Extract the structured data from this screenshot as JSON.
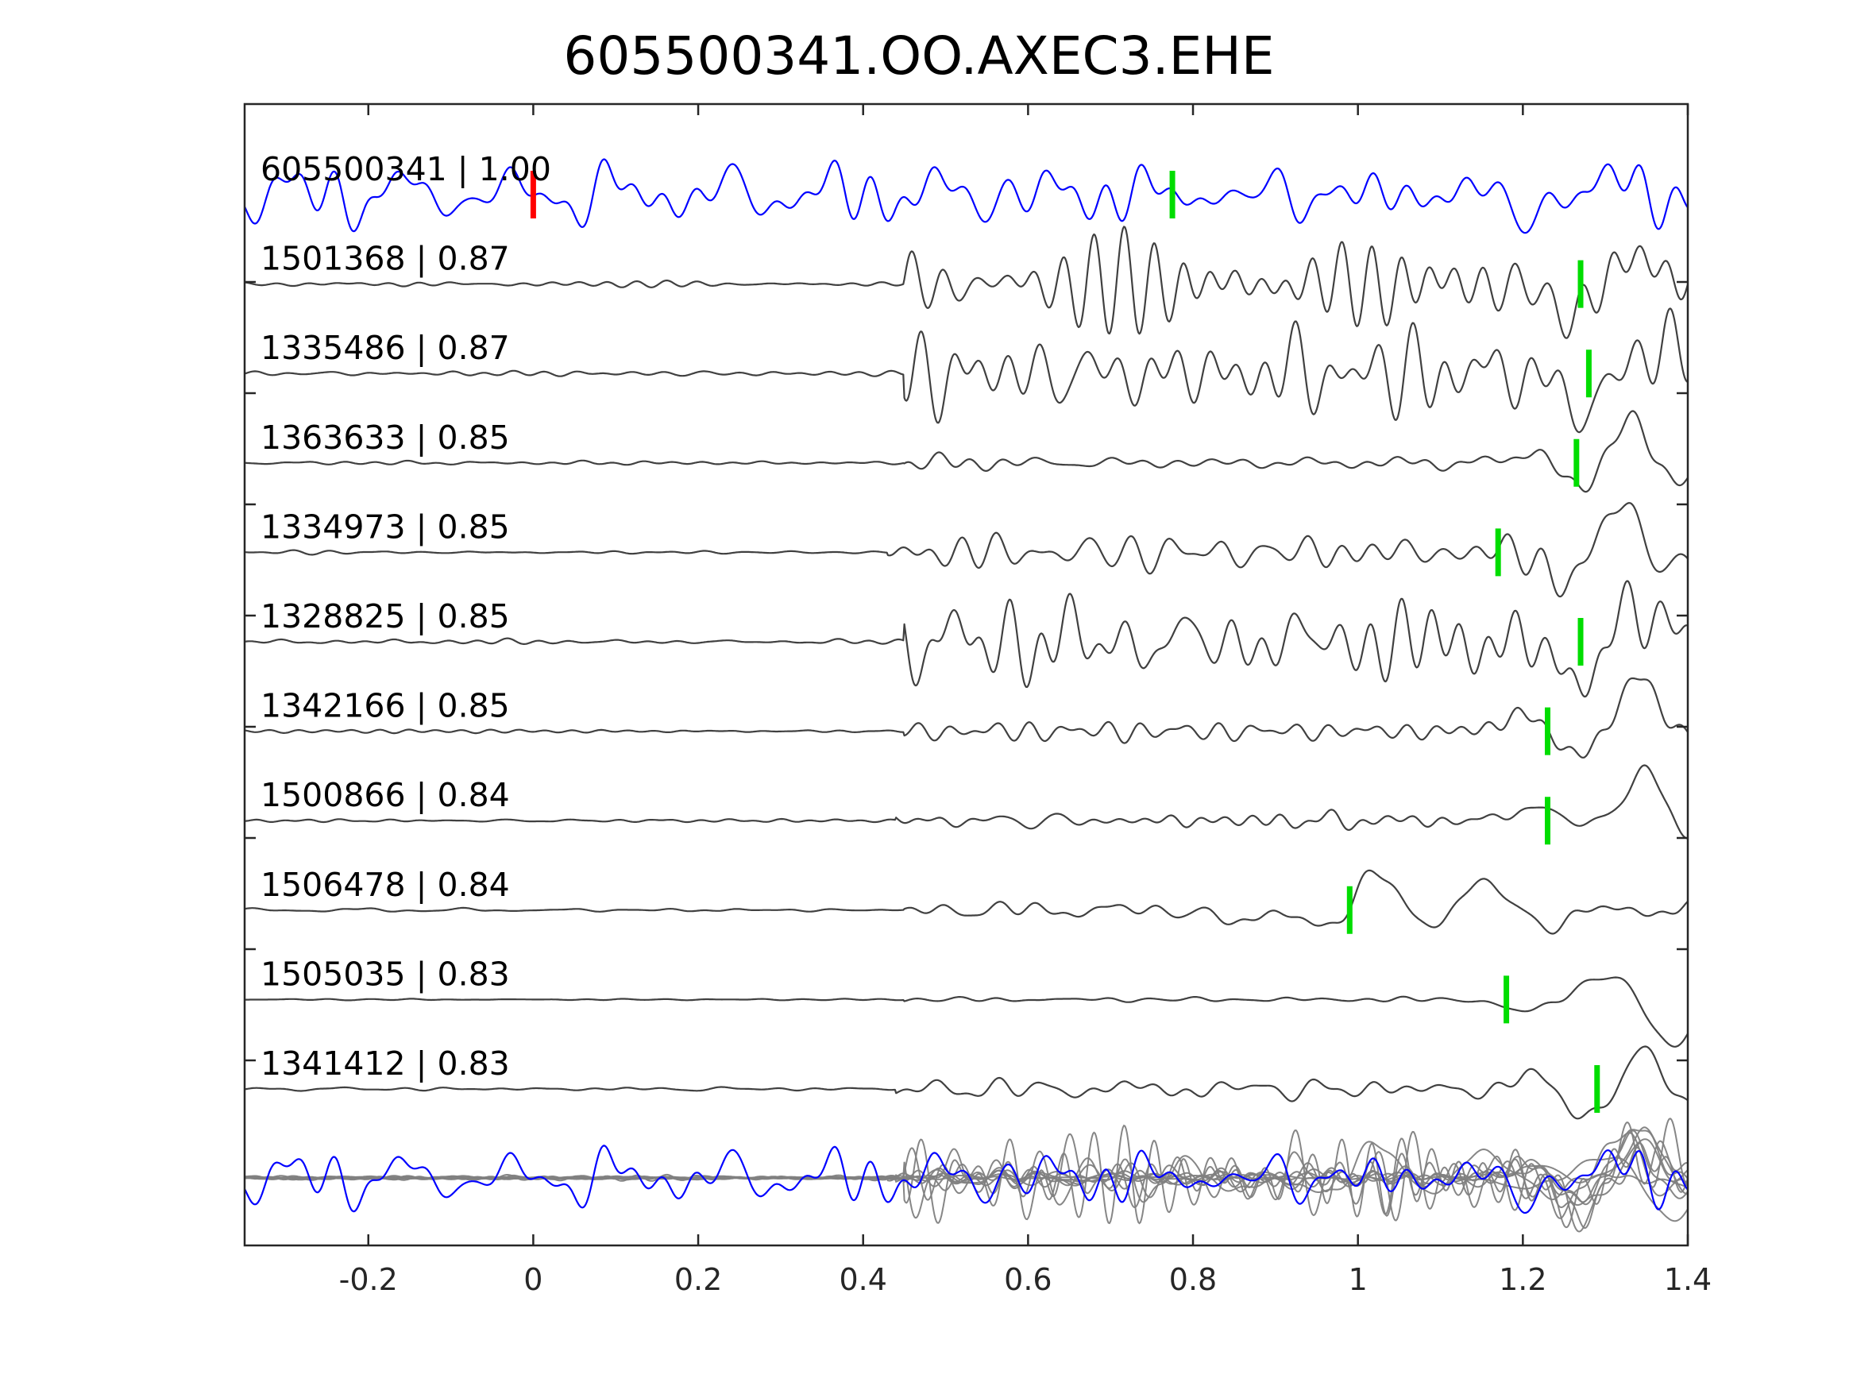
{
  "chart_data": {
    "type": "line",
    "title": "605500341.OO.AXEC3.EHE",
    "xlabel": "",
    "ylabel": "",
    "xlim": [
      -0.35,
      1.4
    ],
    "xticks": [
      {
        "value": -0.2,
        "label": "-0.2"
      },
      {
        "value": 0,
        "label": "0"
      },
      {
        "value": 0.2,
        "label": "0.2"
      },
      {
        "value": 0.4,
        "label": "0.4"
      },
      {
        "value": 0.6,
        "label": "0.6"
      },
      {
        "value": 0.8,
        "label": "0.8"
      },
      {
        "value": 1,
        "label": "1"
      },
      {
        "value": 1.2,
        "label": "1.2"
      },
      {
        "value": 1.4,
        "label": "1.4"
      }
    ],
    "grid": false,
    "legend": "none",
    "colors": {
      "template": "#0000ff",
      "match": "#404040",
      "stack": "#808080",
      "zero_marker": "#ff0000",
      "pick_marker": "#00dd00"
    },
    "template_zero_marker": 0.0,
    "series": [
      {
        "label": "605500341 | 1.00",
        "pick": 0.775,
        "color": "#0000ff",
        "shape": {
          "onset": -0.35,
          "pre": 0.35,
          "coda": 0.35,
          "waves": [
            [
              1.215,
              0.035,
              -0.25,
              12
            ],
            [
              1.33,
              0.022,
              0.55,
              9
            ],
            [
              1.35,
              0.04,
              -0.3,
              7
            ]
          ]
        }
      },
      {
        "label": "1501368 | 0.87",
        "pick": 1.27,
        "color": "#404040",
        "shape": {
          "onset": 0.45,
          "pre": 0.03,
          "coda": 0.5,
          "waves": [
            [
              1.25,
              0.03,
              -0.4,
              10
            ],
            [
              1.33,
              0.025,
              0.3,
              8
            ]
          ]
        }
      },
      {
        "label": "1335486 | 0.87",
        "pick": 1.28,
        "color": "#404040",
        "shape": {
          "onset": 0.45,
          "pre": 0.03,
          "coda": 0.55,
          "waves": [
            [
              1.27,
              0.03,
              -0.45,
              10
            ],
            [
              1.36,
              0.03,
              0.3,
              8
            ]
          ]
        }
      },
      {
        "label": "1363633 | 0.85",
        "pick": 1.265,
        "color": "#404040",
        "shape": {
          "onset": 0.45,
          "pre": 0.02,
          "coda": 0.1,
          "waves": [
            [
              1.22,
              0.03,
              0.12,
              6
            ],
            [
              1.27,
              0.03,
              -0.3,
              9
            ],
            [
              1.33,
              0.025,
              0.55,
              9
            ],
            [
              1.38,
              0.03,
              -0.2,
              7
            ]
          ]
        }
      },
      {
        "label": "1334973 | 0.85",
        "pick": 1.17,
        "color": "#404040",
        "shape": {
          "onset": 0.43,
          "pre": 0.02,
          "coda": 0.2,
          "waves": [
            [
              1.25,
              0.03,
              -0.3,
              9
            ],
            [
              1.32,
              0.025,
              0.55,
              9
            ],
            [
              1.38,
              0.03,
              -0.15,
              7
            ]
          ]
        }
      },
      {
        "label": "1328825 | 0.85",
        "pick": 1.27,
        "color": "#404040",
        "shape": {
          "onset": 0.45,
          "pre": 0.03,
          "coda": 0.5,
          "waves": [
            [
              1.255,
              0.03,
              -0.45,
              10
            ],
            [
              1.34,
              0.03,
              0.3,
              8
            ]
          ]
        }
      },
      {
        "label": "1342166 | 0.85",
        "pick": 1.23,
        "color": "#404040",
        "shape": {
          "onset": 0.45,
          "pre": 0.02,
          "coda": 0.1,
          "waves": [
            [
              1.2,
              0.025,
              0.2,
              6
            ],
            [
              1.26,
              0.03,
              -0.25,
              9
            ],
            [
              1.34,
              0.025,
              0.6,
              9
            ]
          ]
        }
      },
      {
        "label": "1500866 | 0.84",
        "pick": 1.23,
        "color": "#404040",
        "shape": {
          "onset": 0.44,
          "pre": 0.02,
          "coda": 0.1,
          "waves": [
            [
              1.21,
              0.025,
              0.15,
              6
            ],
            [
              1.35,
              0.03,
              0.6,
              9
            ],
            [
              1.39,
              0.03,
              -0.2,
              7
            ]
          ]
        }
      },
      {
        "label": "1506478 | 0.84",
        "pick": 0.99,
        "color": "#404040",
        "shape": {
          "onset": 0.45,
          "pre": 0.02,
          "coda": 0.12,
          "waves": [
            [
              0.85,
              0.03,
              -0.12,
              6
            ],
            [
              0.96,
              0.03,
              -0.22,
              6
            ],
            [
              1.03,
              0.04,
              0.55,
              6
            ],
            [
              1.07,
              0.04,
              -0.4,
              6
            ],
            [
              1.14,
              0.05,
              0.3,
              6
            ],
            [
              1.22,
              0.05,
              -0.12,
              6
            ]
          ]
        }
      },
      {
        "label": "1505035 | 0.83",
        "pick": 1.18,
        "color": "#404040",
        "shape": {
          "onset": 0.45,
          "pre": 0.01,
          "coda": 0.04,
          "waves": [
            [
              1.2,
              0.03,
              -0.12,
              6
            ],
            [
              1.3,
              0.04,
              0.25,
              7
            ],
            [
              1.38,
              0.03,
              -0.5,
              8
            ]
          ]
        }
      },
      {
        "label": "1341412 | 0.83",
        "pick": 1.29,
        "color": "#404040",
        "shape": {
          "onset": 0.44,
          "pre": 0.02,
          "coda": 0.12,
          "waves": [
            [
              1.22,
              0.03,
              0.1,
              6
            ],
            [
              1.28,
              0.03,
              -0.3,
              9
            ],
            [
              1.35,
              0.03,
              0.4,
              8
            ],
            [
              1.39,
              0.03,
              -0.15,
              7
            ]
          ]
        }
      }
    ]
  }
}
